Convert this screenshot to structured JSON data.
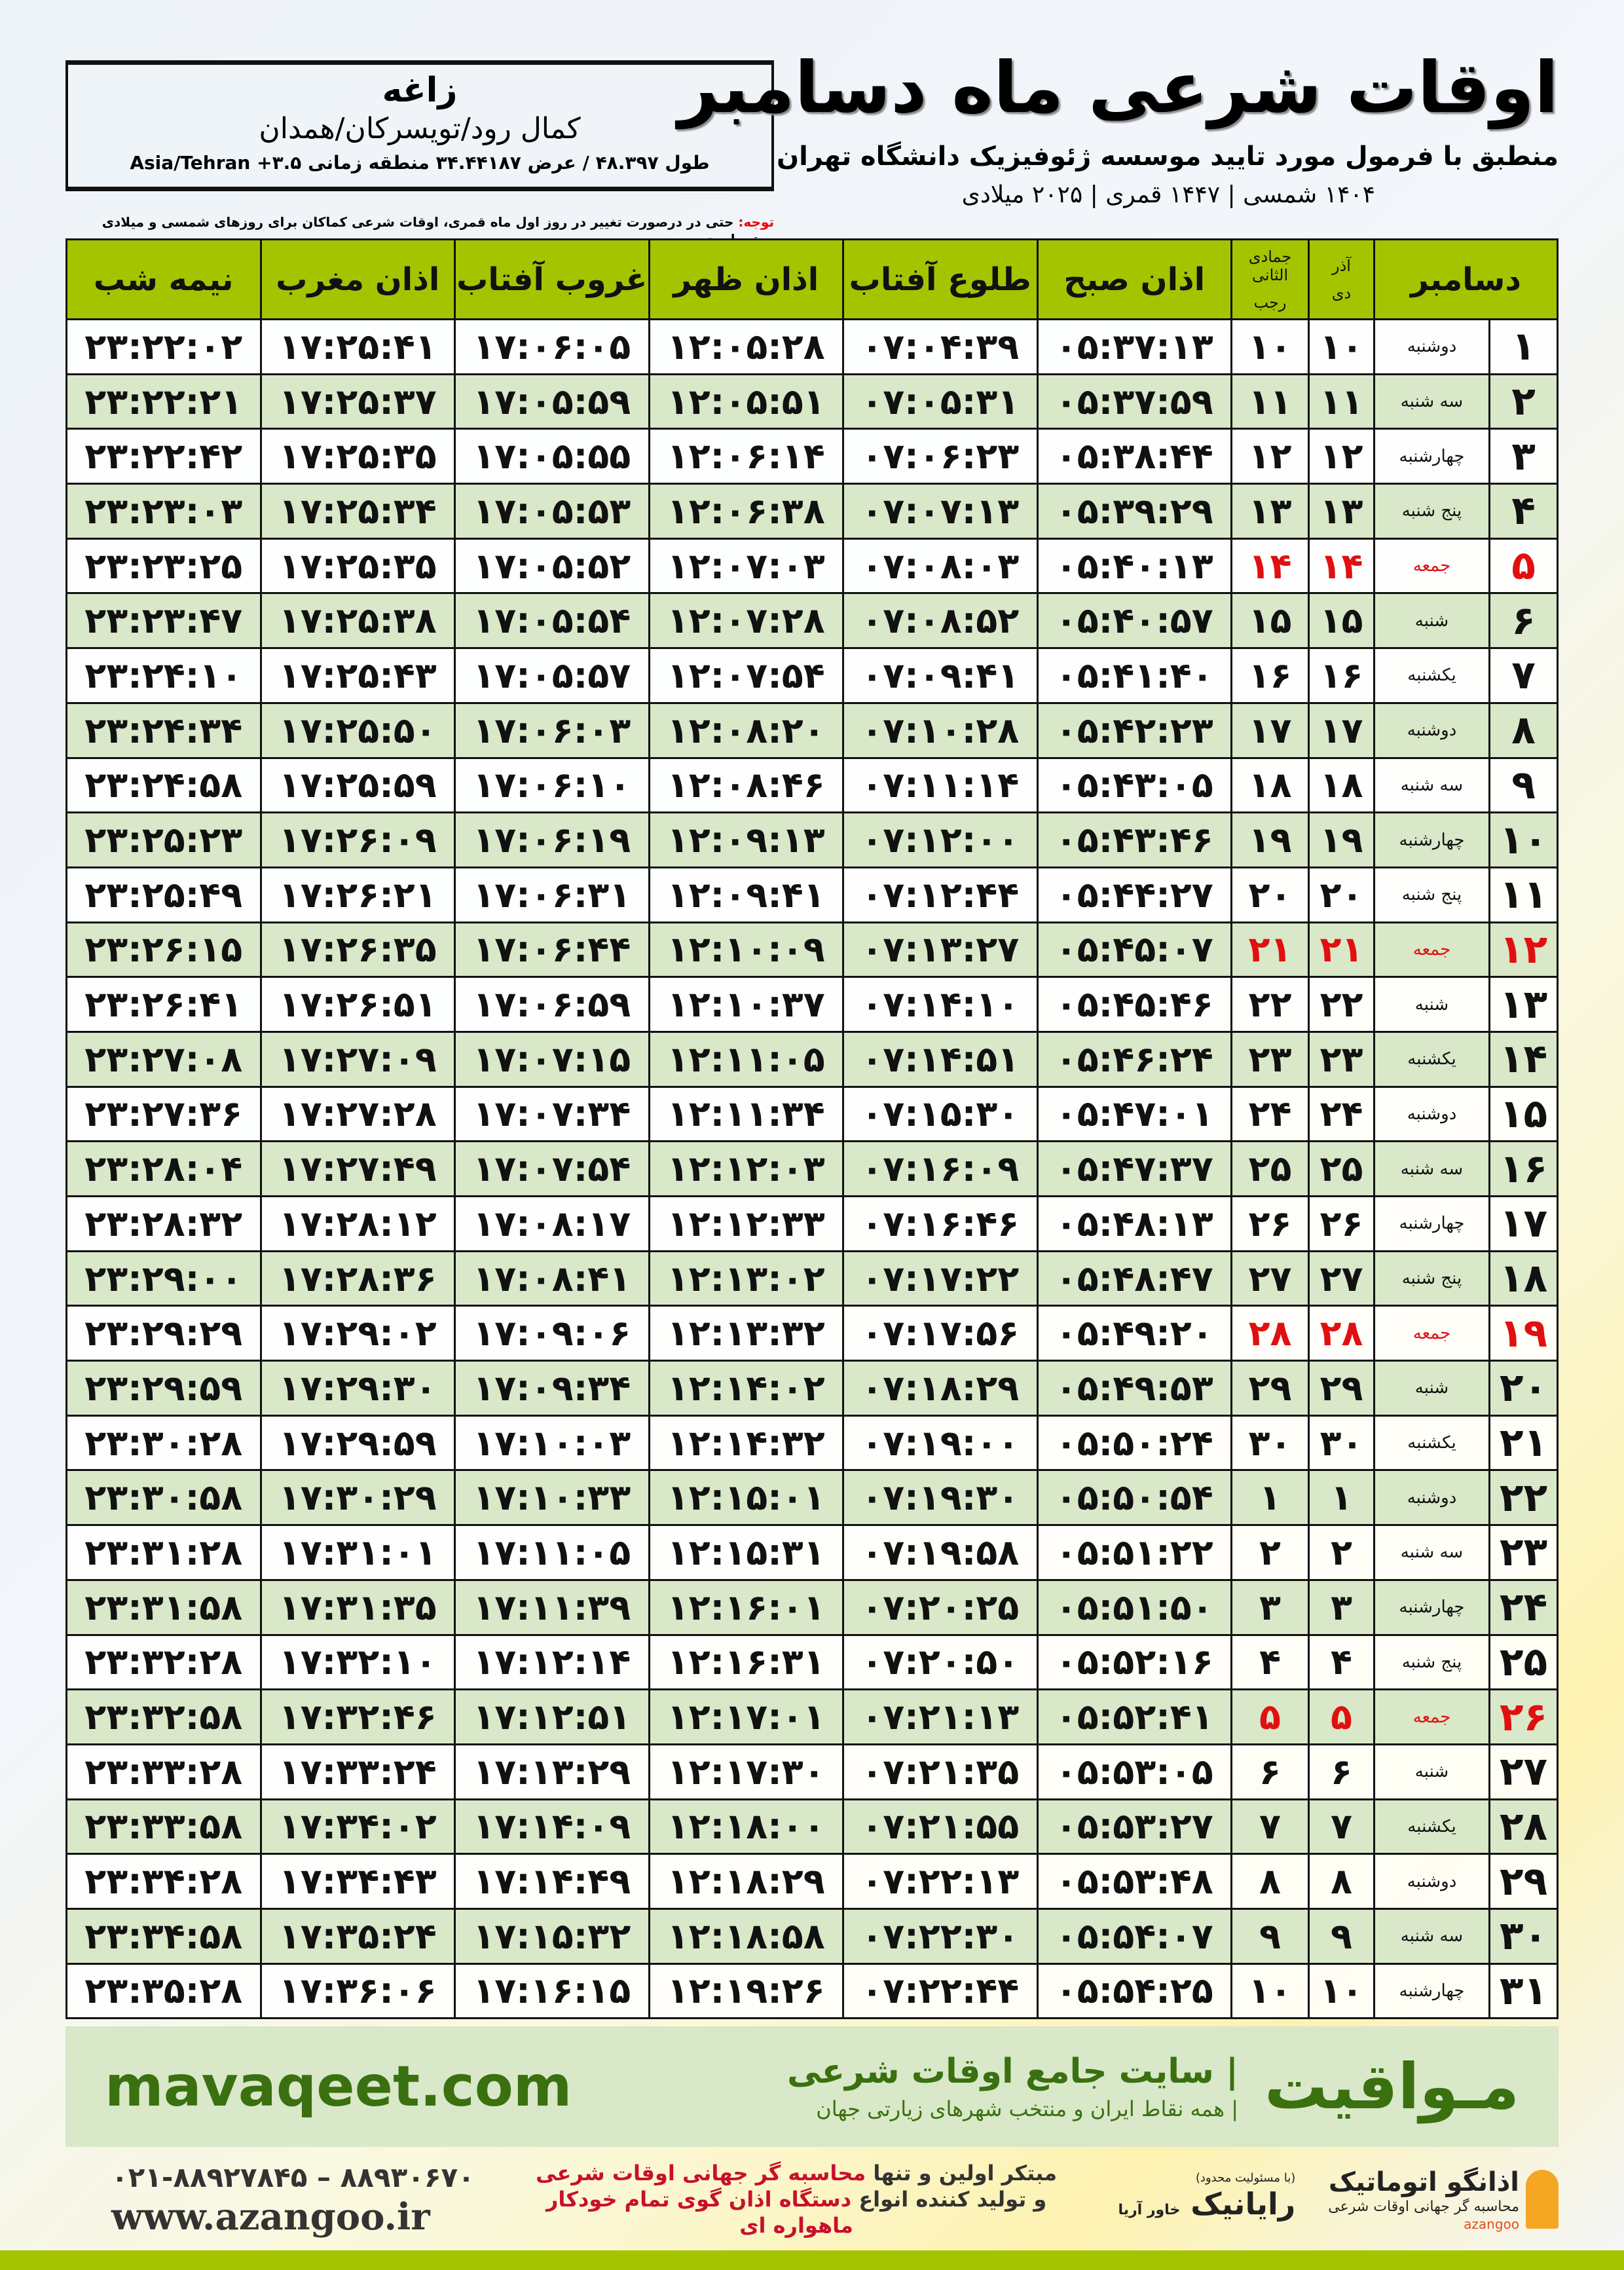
{
  "header": {
    "title": "اوقات شرعی ماه دسامبر",
    "subtitle": "منطبق با فرمول مورد تایید موسسه ژئوفیزیک دانشگاه تهران",
    "dates": "۱۴۰۴ شمسی | ۱۴۴۷ قمری | ۲۰۲۵ میلادی"
  },
  "location": {
    "city": "زاغه",
    "region": "کمال رود/تویسرکان/همدان",
    "coords": "طول ۴۸.۳۹۷ / عرض ۳۴.۴۴۱۸۷ منطقه زمانی ۳.۵+ Asia/Tehran"
  },
  "note": {
    "label": "توجه:",
    "text": " حتی در درصورت تغییر در روز اول ماه قمری، اوقات شرعی کماکان برای روزهای شمسی و میلادی معتبر است."
  },
  "columns": {
    "month": "دسامبر",
    "shamsi_top": "آذر",
    "shamsi": "دی",
    "qamari_top": "جمادی الثانی",
    "qamari": "رجب",
    "sobh": "اذان صبح",
    "tolu": "طلوع آفتاب",
    "zohr": "اذان ظهر",
    "ghorub": "غروب آفتاب",
    "maghreb": "اذان مغرب",
    "nimeshab": "نیمه شب"
  },
  "colors": {
    "header": "#a4c400",
    "row_alt": "#d9e8c8",
    "friday": "#e01010",
    "brand": "#3a7010"
  },
  "rows": [
    [
      "۱",
      "دوشنبه",
      "۱۰",
      "۱۰",
      "۰۵:۳۷:۱۳",
      "۰۷:۰۴:۳۹",
      "۱۲:۰۵:۲۸",
      "۱۷:۰۶:۰۵",
      "۱۷:۲۵:۴۱",
      "۲۳:۲۲:۰۲"
    ],
    [
      "۲",
      "سه شنبه",
      "۱۱",
      "۱۱",
      "۰۵:۳۷:۵۹",
      "۰۷:۰۵:۳۱",
      "۱۲:۰۵:۵۱",
      "۱۷:۰۵:۵۹",
      "۱۷:۲۵:۳۷",
      "۲۳:۲۲:۲۱"
    ],
    [
      "۳",
      "چهارشنبه",
      "۱۲",
      "۱۲",
      "۰۵:۳۸:۴۴",
      "۰۷:۰۶:۲۳",
      "۱۲:۰۶:۱۴",
      "۱۷:۰۵:۵۵",
      "۱۷:۲۵:۳۵",
      "۲۳:۲۲:۴۲"
    ],
    [
      "۴",
      "پنج شنبه",
      "۱۳",
      "۱۳",
      "۰۵:۳۹:۲۹",
      "۰۷:۰۷:۱۳",
      "۱۲:۰۶:۳۸",
      "۱۷:۰۵:۵۳",
      "۱۷:۲۵:۳۴",
      "۲۳:۲۳:۰۳"
    ],
    [
      "۵",
      "جمعه",
      "۱۴",
      "۱۴",
      "۰۵:۴۰:۱۳",
      "۰۷:۰۸:۰۳",
      "۱۲:۰۷:۰۳",
      "۱۷:۰۵:۵۲",
      "۱۷:۲۵:۳۵",
      "۲۳:۲۳:۲۵"
    ],
    [
      "۶",
      "شنبه",
      "۱۵",
      "۱۵",
      "۰۵:۴۰:۵۷",
      "۰۷:۰۸:۵۲",
      "۱۲:۰۷:۲۸",
      "۱۷:۰۵:۵۴",
      "۱۷:۲۵:۳۸",
      "۲۳:۲۳:۴۷"
    ],
    [
      "۷",
      "یکشنبه",
      "۱۶",
      "۱۶",
      "۰۵:۴۱:۴۰",
      "۰۷:۰۹:۴۱",
      "۱۲:۰۷:۵۴",
      "۱۷:۰۵:۵۷",
      "۱۷:۲۵:۴۳",
      "۲۳:۲۴:۱۰"
    ],
    [
      "۸",
      "دوشنبه",
      "۱۷",
      "۱۷",
      "۰۵:۴۲:۲۳",
      "۰۷:۱۰:۲۸",
      "۱۲:۰۸:۲۰",
      "۱۷:۰۶:۰۳",
      "۱۷:۲۵:۵۰",
      "۲۳:۲۴:۳۴"
    ],
    [
      "۹",
      "سه شنبه",
      "۱۸",
      "۱۸",
      "۰۵:۴۳:۰۵",
      "۰۷:۱۱:۱۴",
      "۱۲:۰۸:۴۶",
      "۱۷:۰۶:۱۰",
      "۱۷:۲۵:۵۹",
      "۲۳:۲۴:۵۸"
    ],
    [
      "۱۰",
      "چهارشنبه",
      "۱۹",
      "۱۹",
      "۰۵:۴۳:۴۶",
      "۰۷:۱۲:۰۰",
      "۱۲:۰۹:۱۳",
      "۱۷:۰۶:۱۹",
      "۱۷:۲۶:۰۹",
      "۲۳:۲۵:۲۳"
    ],
    [
      "۱۱",
      "پنج شنبه",
      "۲۰",
      "۲۰",
      "۰۵:۴۴:۲۷",
      "۰۷:۱۲:۴۴",
      "۱۲:۰۹:۴۱",
      "۱۷:۰۶:۳۱",
      "۱۷:۲۶:۲۱",
      "۲۳:۲۵:۴۹"
    ],
    [
      "۱۲",
      "جمعه",
      "۲۱",
      "۲۱",
      "۰۵:۴۵:۰۷",
      "۰۷:۱۳:۲۷",
      "۱۲:۱۰:۰۹",
      "۱۷:۰۶:۴۴",
      "۱۷:۲۶:۳۵",
      "۲۳:۲۶:۱۵"
    ],
    [
      "۱۳",
      "شنبه",
      "۲۲",
      "۲۲",
      "۰۵:۴۵:۴۶",
      "۰۷:۱۴:۱۰",
      "۱۲:۱۰:۳۷",
      "۱۷:۰۶:۵۹",
      "۱۷:۲۶:۵۱",
      "۲۳:۲۶:۴۱"
    ],
    [
      "۱۴",
      "یکشنبه",
      "۲۳",
      "۲۳",
      "۰۵:۴۶:۲۴",
      "۰۷:۱۴:۵۱",
      "۱۲:۱۱:۰۵",
      "۱۷:۰۷:۱۵",
      "۱۷:۲۷:۰۹",
      "۲۳:۲۷:۰۸"
    ],
    [
      "۱۵",
      "دوشنبه",
      "۲۴",
      "۲۴",
      "۰۵:۴۷:۰۱",
      "۰۷:۱۵:۳۰",
      "۱۲:۱۱:۳۴",
      "۱۷:۰۷:۳۴",
      "۱۷:۲۷:۲۸",
      "۲۳:۲۷:۳۶"
    ],
    [
      "۱۶",
      "سه شنبه",
      "۲۵",
      "۲۵",
      "۰۵:۴۷:۳۷",
      "۰۷:۱۶:۰۹",
      "۱۲:۱۲:۰۳",
      "۱۷:۰۷:۵۴",
      "۱۷:۲۷:۴۹",
      "۲۳:۲۸:۰۴"
    ],
    [
      "۱۷",
      "چهارشنبه",
      "۲۶",
      "۲۶",
      "۰۵:۴۸:۱۳",
      "۰۷:۱۶:۴۶",
      "۱۲:۱۲:۳۳",
      "۱۷:۰۸:۱۷",
      "۱۷:۲۸:۱۲",
      "۲۳:۲۸:۳۲"
    ],
    [
      "۱۸",
      "پنج شنبه",
      "۲۷",
      "۲۷",
      "۰۵:۴۸:۴۷",
      "۰۷:۱۷:۲۲",
      "۱۲:۱۳:۰۲",
      "۱۷:۰۸:۴۱",
      "۱۷:۲۸:۳۶",
      "۲۳:۲۹:۰۰"
    ],
    [
      "۱۹",
      "جمعه",
      "۲۸",
      "۲۸",
      "۰۵:۴۹:۲۰",
      "۰۷:۱۷:۵۶",
      "۱۲:۱۳:۳۲",
      "۱۷:۰۹:۰۶",
      "۱۷:۲۹:۰۲",
      "۲۳:۲۹:۲۹"
    ],
    [
      "۲۰",
      "شنبه",
      "۲۹",
      "۲۹",
      "۰۵:۴۹:۵۳",
      "۰۷:۱۸:۲۹",
      "۱۲:۱۴:۰۲",
      "۱۷:۰۹:۳۴",
      "۱۷:۲۹:۳۰",
      "۲۳:۲۹:۵۹"
    ],
    [
      "۲۱",
      "یکشنبه",
      "۳۰",
      "۳۰",
      "۰۵:۵۰:۲۴",
      "۰۷:۱۹:۰۰",
      "۱۲:۱۴:۳۲",
      "۱۷:۱۰:۰۳",
      "۱۷:۲۹:۵۹",
      "۲۳:۳۰:۲۸"
    ],
    [
      "۲۲",
      "دوشنبه",
      "۱",
      "۱",
      "۰۵:۵۰:۵۴",
      "۰۷:۱۹:۳۰",
      "۱۲:۱۵:۰۱",
      "۱۷:۱۰:۳۳",
      "۱۷:۳۰:۲۹",
      "۲۳:۳۰:۵۸"
    ],
    [
      "۲۳",
      "سه شنبه",
      "۲",
      "۲",
      "۰۵:۵۱:۲۲",
      "۰۷:۱۹:۵۸",
      "۱۲:۱۵:۳۱",
      "۱۷:۱۱:۰۵",
      "۱۷:۳۱:۰۱",
      "۲۳:۳۱:۲۸"
    ],
    [
      "۲۴",
      "چهارشنبه",
      "۳",
      "۳",
      "۰۵:۵۱:۵۰",
      "۰۷:۲۰:۲۵",
      "۱۲:۱۶:۰۱",
      "۱۷:۱۱:۳۹",
      "۱۷:۳۱:۳۵",
      "۲۳:۳۱:۵۸"
    ],
    [
      "۲۵",
      "پنج شنبه",
      "۴",
      "۴",
      "۰۵:۵۲:۱۶",
      "۰۷:۲۰:۵۰",
      "۱۲:۱۶:۳۱",
      "۱۷:۱۲:۱۴",
      "۱۷:۳۲:۱۰",
      "۲۳:۳۲:۲۸"
    ],
    [
      "۲۶",
      "جمعه",
      "۵",
      "۵",
      "۰۵:۵۲:۴۱",
      "۰۷:۲۱:۱۳",
      "۱۲:۱۷:۰۱",
      "۱۷:۱۲:۵۱",
      "۱۷:۳۲:۴۶",
      "۲۳:۳۲:۵۸"
    ],
    [
      "۲۷",
      "شنبه",
      "۶",
      "۶",
      "۰۵:۵۳:۰۵",
      "۰۷:۲۱:۳۵",
      "۱۲:۱۷:۳۰",
      "۱۷:۱۳:۲۹",
      "۱۷:۳۳:۲۴",
      "۲۳:۳۳:۲۸"
    ],
    [
      "۲۸",
      "یکشنبه",
      "۷",
      "۷",
      "۰۵:۵۳:۲۷",
      "۰۷:۲۱:۵۵",
      "۱۲:۱۸:۰۰",
      "۱۷:۱۴:۰۹",
      "۱۷:۳۴:۰۲",
      "۲۳:۳۳:۵۸"
    ],
    [
      "۲۹",
      "دوشنبه",
      "۸",
      "۸",
      "۰۵:۵۳:۴۸",
      "۰۷:۲۲:۱۳",
      "۱۲:۱۸:۲۹",
      "۱۷:۱۴:۴۹",
      "۱۷:۳۴:۴۳",
      "۲۳:۳۴:۲۸"
    ],
    [
      "۳۰",
      "سه شنبه",
      "۹",
      "۹",
      "۰۵:۵۴:۰۷",
      "۰۷:۲۲:۳۰",
      "۱۲:۱۸:۵۸",
      "۱۷:۱۵:۳۲",
      "۱۷:۳۵:۲۴",
      "۲۳:۳۴:۵۸"
    ],
    [
      "۳۱",
      "چهارشنبه",
      "۱۰",
      "۱۰",
      "۰۵:۵۴:۲۵",
      "۰۷:۲۲:۴۴",
      "۱۲:۱۹:۲۶",
      "۱۷:۱۶:۱۵",
      "۱۷:۳۶:۰۶",
      "۲۳:۳۵:۲۸"
    ]
  ],
  "banner": {
    "brand": "مـواقیت",
    "slogan": "| سایت جامع اوقات شرعی",
    "sub": "| همه نقاط ایران و منتخب شهرهای زیارتی جهان",
    "url": "mavaqeet.com"
  },
  "footer": {
    "phone": "۰۲۱-۸۸۹۲۷۸۴۵ – ۸۸۹۳۰۶۷۰",
    "web": "www.azangoo.ir",
    "line1a": "مبتکر اولین و تنها ",
    "line1b": "محاسبه گر جهانی اوقات شرعی",
    "line2a": "و تولید کننده انواع ",
    "line2b": "دستگاه اذان گوی تمام خودکار ماهواره ای",
    "logo1_small": "(با مسئولیت محدود)",
    "logo1": "رایانیک",
    "logo1_side": "خاور آریا",
    "logo2": "اذانگو اتوماتیک",
    "logo2_small": "محاسبه گر جهانی اوقات شرعی",
    "logo2_en": "azangoo"
  }
}
